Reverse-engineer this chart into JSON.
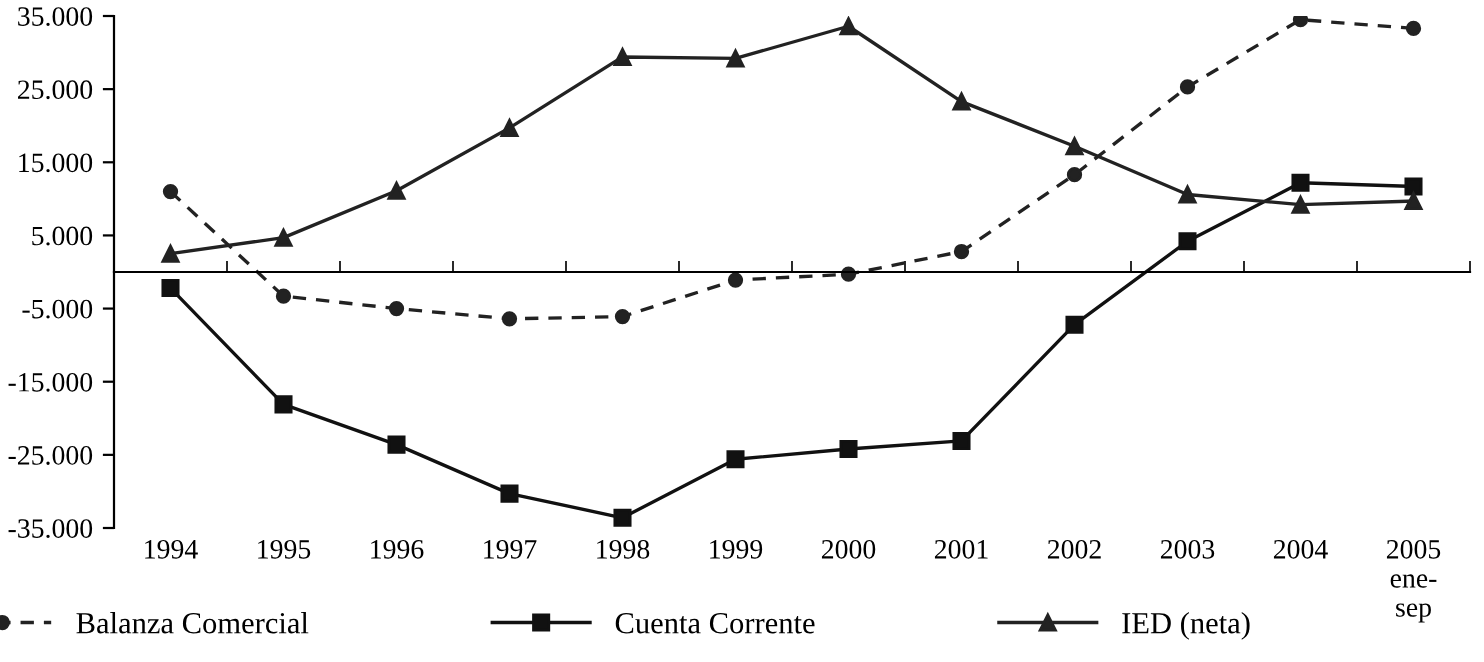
{
  "chart_data": {
    "type": "line",
    "categories": [
      "1994",
      "1995",
      "1996",
      "1997",
      "1998",
      "1999",
      "2000",
      "2001",
      "2002",
      "2003",
      "2004",
      "2005\nene-\nsep"
    ],
    "series": [
      {
        "name": "Balanza Comercial",
        "color": "#222222",
        "marker": "circle",
        "line_style": "dashed",
        "values": [
          11000,
          -3300,
          -5000,
          -6400,
          -6100,
          -1100,
          -300,
          2800,
          13300,
          25300,
          34500,
          33300
        ]
      },
      {
        "name": "Cuenta Corrente",
        "color": "#111111",
        "marker": "square",
        "line_style": "solid",
        "values": [
          -2200,
          -18100,
          -23600,
          -30300,
          -33600,
          -25600,
          -24200,
          -23100,
          -7200,
          4200,
          12200,
          11700
        ]
      },
      {
        "name": "IED (neta)",
        "color": "#222222",
        "marker": "triangle",
        "line_style": "solid",
        "values": [
          2500,
          4700,
          11100,
          19700,
          29400,
          29200,
          33600,
          23300,
          17200,
          10600,
          9200,
          9700
        ]
      }
    ],
    "ylim": [
      -35000,
      35000
    ],
    "yticks": [
      {
        "value": -35000,
        "label": "-35.000"
      },
      {
        "value": -25000,
        "label": "-25.000"
      },
      {
        "value": -15000,
        "label": "-15.000"
      },
      {
        "value": -5000,
        "label": "-5.000"
      },
      {
        "value": 5000,
        "label": "5.000"
      },
      {
        "value": 15000,
        "label": "15.000"
      },
      {
        "value": 25000,
        "label": "25.000"
      },
      {
        "value": 35000,
        "label": "35.000"
      }
    ],
    "grid": false,
    "legend": "bottom"
  }
}
